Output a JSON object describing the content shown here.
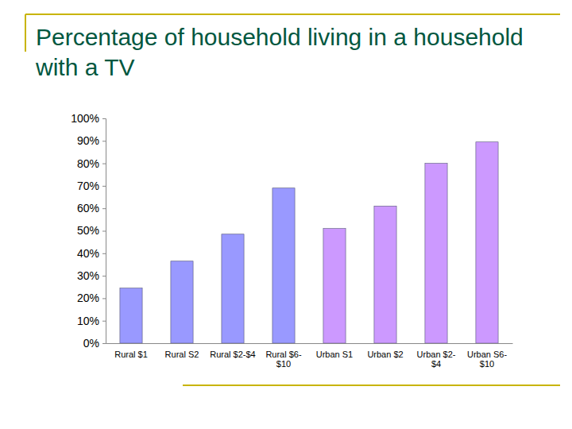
{
  "chart_data": {
    "type": "bar",
    "title": "Percentage of household living in a household with a TV",
    "categories": [
      "Rural $1",
      "Rural S2",
      "Rural $2-$4",
      "Rural $6-$10",
      "Urban S1",
      "Urban $2",
      "Urban $2-$4",
      "Urban S6-$10"
    ],
    "values": [
      24.5,
      36.5,
      48.5,
      69,
      51,
      61,
      80,
      89.5
    ],
    "colors": [
      "#9999ff",
      "#9999ff",
      "#9999ff",
      "#9999ff",
      "#cc99ff",
      "#cc99ff",
      "#cc99ff",
      "#cc99ff"
    ],
    "ylim": [
      0,
      100
    ],
    "yticks": [
      {
        "value": 0,
        "label": "0%"
      },
      {
        "value": 10,
        "label": "10%"
      },
      {
        "value": 20,
        "label": "20%"
      },
      {
        "value": 30,
        "label": "30%"
      },
      {
        "value": 40,
        "label": "40%"
      },
      {
        "value": 50,
        "label": "50%"
      },
      {
        "value": 60,
        "label": "60%"
      },
      {
        "value": 70,
        "label": "70%"
      },
      {
        "value": 80,
        "label": "80%"
      },
      {
        "value": 90,
        "label": "90%"
      },
      {
        "value": 100,
        "label": "100%"
      }
    ],
    "grid": false
  }
}
